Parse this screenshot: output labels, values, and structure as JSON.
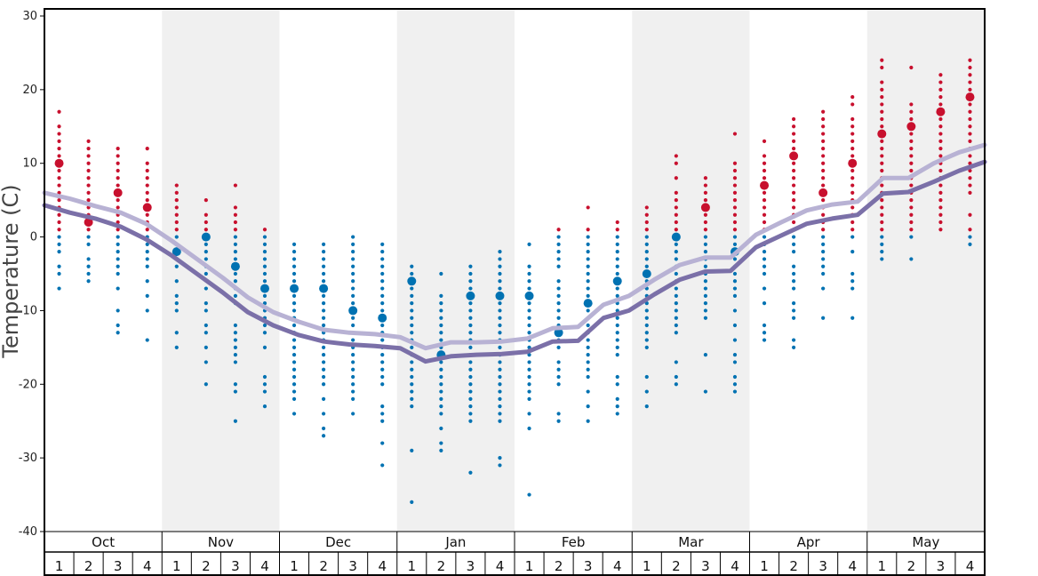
{
  "chart_data": {
    "type": "scatter",
    "ylabel": "Temperature (C)",
    "ylim": [
      -40,
      30
    ],
    "y_ticks": [
      "30",
      "20",
      "10",
      "0",
      "-10",
      "-20",
      "-30",
      "-40"
    ],
    "y_tick_values": [
      30,
      20,
      10,
      0,
      -10,
      -20,
      -30,
      -40
    ],
    "months": [
      "Oct",
      "Nov",
      "Dec",
      "Jan",
      "Feb",
      "Mar",
      "Apr",
      "May"
    ],
    "weeks": [
      "1",
      "2",
      "3",
      "4"
    ],
    "shaded_months": [
      1,
      3,
      5,
      7
    ],
    "colors": {
      "above_zero": "#c8102e",
      "below_zero": "#0072b2",
      "line_dark": "#7b70a8",
      "line_light": "#b8b2d4",
      "shade": "#f0f0f0"
    },
    "series": [
      {
        "name": "",
        "style": "dark",
        "values": [
          4.3,
          3.3,
          2.5,
          1.4,
          -0.3,
          -2.5,
          -5.0,
          -7.5,
          -10.2,
          -12.0,
          -13.3,
          -14.2,
          -14.6,
          -14.8,
          -15.1,
          -16.9,
          -16.2,
          -16.0,
          -15.9,
          -15.6,
          -14.2,
          -14.1,
          -11.0,
          -10.0,
          -7.8,
          -5.8,
          -4.7,
          -4.6,
          -1.4,
          0.2,
          1.8,
          2.5,
          3.0,
          5.9,
          6.1,
          7.5,
          9.0,
          10.2
        ]
      },
      {
        "name": "",
        "style": "light",
        "values": [
          6.0,
          5.2,
          4.2,
          3.3,
          1.8,
          -0.5,
          -3.0,
          -5.5,
          -8.2,
          -10.2,
          -11.5,
          -12.6,
          -13.0,
          -13.2,
          -13.6,
          -15.1,
          -14.3,
          -14.3,
          -14.2,
          -13.8,
          -12.4,
          -12.2,
          -9.2,
          -8.0,
          -5.8,
          -3.8,
          -2.8,
          -2.8,
          0.3,
          2.0,
          3.6,
          4.4,
          4.8,
          8.0,
          8.0,
          10.0,
          11.5,
          12.5
        ]
      }
    ],
    "scatter_columns": [
      {
        "values": [
          17,
          15,
          14,
          13,
          12,
          11,
          10,
          10,
          10,
          9,
          8,
          7,
          6,
          5,
          4,
          3,
          2,
          1,
          0,
          -1,
          -2,
          -4,
          -5,
          -7
        ],
        "big": [
          10
        ]
      },
      {
        "values": [
          13,
          12,
          11,
          10,
          9,
          8,
          7,
          6,
          5,
          4,
          3,
          2,
          1,
          0,
          -1,
          -3,
          -4,
          -5,
          -6
        ],
        "big": [
          2
        ]
      },
      {
        "values": [
          12,
          11,
          10,
          9,
          8,
          7,
          6,
          5,
          4,
          3,
          2,
          1,
          0,
          -1,
          -2,
          -3,
          -4,
          -5,
          -7,
          -10,
          -12,
          -13
        ],
        "big": [
          6
        ]
      },
      {
        "values": [
          12,
          10,
          9,
          8,
          7,
          6,
          5,
          4,
          3,
          2,
          1,
          0,
          -1,
          -2,
          -3,
          -4,
          -6,
          -8,
          -10,
          -14
        ],
        "big": [
          4
        ]
      },
      {
        "values": [
          7,
          6,
          5,
          4,
          3,
          2,
          1,
          0,
          -1,
          -2,
          -3,
          -4,
          -6,
          -8,
          -9,
          -10,
          -13,
          -15
        ],
        "big": [
          -2
        ]
      },
      {
        "values": [
          5,
          3,
          2,
          1,
          0,
          -1,
          -2,
          -3,
          -4,
          -5,
          -7,
          -9,
          -10,
          -12,
          -13,
          -15,
          -17,
          -20
        ],
        "big": [
          0
        ]
      },
      {
        "values": [
          7,
          4,
          3,
          2,
          1,
          0,
          -1,
          -2,
          -3,
          -4,
          -5,
          -6,
          -7,
          -8,
          -9,
          -12,
          -13,
          -14,
          -15,
          -16,
          -17,
          -20,
          -21,
          -25
        ],
        "big": [
          -4
        ]
      },
      {
        "values": [
          1,
          0,
          -1,
          -2,
          -3,
          -4,
          -5,
          -6,
          -7,
          -8,
          -9,
          -10,
          -11,
          -12,
          -13,
          -15,
          -19,
          -20,
          -21,
          -23
        ],
        "big": [
          -7
        ]
      },
      {
        "values": [
          -1,
          -2,
          -3,
          -4,
          -5,
          -6,
          -7,
          -8,
          -9,
          -10,
          -11,
          -12,
          -13,
          -14,
          -15,
          -16,
          -17,
          -18,
          -19,
          -20,
          -21,
          -22,
          -24
        ],
        "big": [
          -7
        ]
      },
      {
        "values": [
          -1,
          -2,
          -3,
          -4,
          -5,
          -6,
          -7,
          -8,
          -9,
          -10,
          -11,
          -12,
          -13,
          -14,
          -15,
          -16,
          -17,
          -18,
          -19,
          -20,
          -22,
          -24,
          -26,
          -27
        ],
        "big": [
          -7
        ]
      },
      {
        "values": [
          0,
          -1,
          -2,
          -3,
          -4,
          -5,
          -6,
          -7,
          -8,
          -9,
          -10,
          -11,
          -12,
          -13,
          -14,
          -15,
          -16,
          -17,
          -18,
          -19,
          -20,
          -21,
          -22,
          -24
        ],
        "big": [
          -10
        ]
      },
      {
        "values": [
          -1,
          -2,
          -3,
          -4,
          -5,
          -6,
          -7,
          -8,
          -9,
          -10,
          -11,
          -12,
          -13,
          -14,
          -15,
          -16,
          -17,
          -18,
          -19,
          -20,
          -23,
          -24,
          -25,
          -28,
          -31
        ],
        "big": [
          -11
        ]
      },
      {
        "values": [
          -4,
          -5,
          -6,
          -7,
          -8,
          -9,
          -10,
          -11,
          -12,
          -13,
          -14,
          -15,
          -16,
          -17,
          -18,
          -19,
          -20,
          -21,
          -22,
          -23,
          -29,
          -36
        ],
        "big": [
          -6
        ]
      },
      {
        "values": [
          -5,
          -8,
          -9,
          -10,
          -11,
          -12,
          -13,
          -14,
          -15,
          -16,
          -17,
          -18,
          -19,
          -20,
          -21,
          -22,
          -23,
          -24,
          -26,
          -28,
          -29
        ],
        "big": [
          -16
        ]
      },
      {
        "values": [
          -4,
          -5,
          -6,
          -7,
          -8,
          -9,
          -10,
          -11,
          -12,
          -13,
          -14,
          -15,
          -16,
          -17,
          -18,
          -19,
          -20,
          -21,
          -22,
          -23,
          -24,
          -25,
          -32
        ],
        "big": [
          -8
        ]
      },
      {
        "values": [
          -2,
          -3,
          -4,
          -5,
          -6,
          -7,
          -8,
          -9,
          -10,
          -11,
          -12,
          -13,
          -14,
          -15,
          -16,
          -17,
          -18,
          -19,
          -20,
          -21,
          -22,
          -23,
          -24,
          -25,
          -30,
          -31
        ],
        "big": [
          -8
        ]
      },
      {
        "values": [
          -1,
          -4,
          -5,
          -6,
          -7,
          -8,
          -9,
          -10,
          -11,
          -12,
          -13,
          -14,
          -15,
          -16,
          -17,
          -18,
          -19,
          -20,
          -21,
          -22,
          -24,
          -26,
          -35
        ],
        "big": [
          -8
        ]
      },
      {
        "values": [
          1,
          0,
          -1,
          -2,
          -3,
          -4,
          -6,
          -7,
          -8,
          -9,
          -10,
          -11,
          -12,
          -13,
          -14,
          -15,
          -17,
          -18,
          -19,
          -20,
          -24,
          -25
        ],
        "big": [
          -13
        ]
      },
      {
        "values": [
          4,
          1,
          0,
          -1,
          -2,
          -3,
          -4,
          -5,
          -6,
          -7,
          -8,
          -9,
          -10,
          -11,
          -12,
          -13,
          -14,
          -15,
          -16,
          -17,
          -18,
          -19,
          -21,
          -23,
          -25
        ],
        "big": [
          -9
        ]
      },
      {
        "values": [
          2,
          1,
          0,
          -1,
          -2,
          -3,
          -4,
          -5,
          -6,
          -7,
          -8,
          -9,
          -10,
          -11,
          -12,
          -13,
          -14,
          -15,
          -16,
          -19,
          -20,
          -22,
          -23,
          -24
        ],
        "big": [
          -6
        ]
      },
      {
        "values": [
          4,
          3,
          2,
          1,
          0,
          -1,
          -2,
          -3,
          -4,
          -5,
          -6,
          -7,
          -8,
          -9,
          -10,
          -11,
          -12,
          -13,
          -14,
          -15,
          -19,
          -21,
          -23
        ],
        "big": [
          -5
        ]
      },
      {
        "values": [
          11,
          10,
          8,
          6,
          5,
          4,
          3,
          2,
          1,
          0,
          -1,
          -2,
          -3,
          -4,
          -5,
          -6,
          -7,
          -8,
          -9,
          -10,
          -11,
          -12,
          -13,
          -17,
          -19,
          -20
        ],
        "big": [
          0
        ]
      },
      {
        "values": [
          8,
          7,
          6,
          5,
          4,
          3,
          2,
          1,
          0,
          -1,
          -2,
          -3,
          -4,
          -5,
          -6,
          -7,
          -8,
          -9,
          -10,
          -11,
          -16,
          -21
        ],
        "big": [
          4
        ]
      },
      {
        "values": [
          14,
          10,
          9,
          8,
          7,
          6,
          5,
          4,
          3,
          2,
          1,
          0,
          -1,
          -2,
          -3,
          -4,
          -5,
          -6,
          -7,
          -8,
          -10,
          -12,
          -14,
          -16,
          -17,
          -19,
          -20,
          -21
        ],
        "big": [
          -2
        ]
      },
      {
        "values": [
          13,
          11,
          10,
          9,
          8,
          7,
          6,
          5,
          4,
          3,
          2,
          1,
          0,
          -1,
          -2,
          -3,
          -4,
          -5,
          -7,
          -9,
          -12,
          -13,
          -14
        ],
        "big": [
          7
        ]
      },
      {
        "values": [
          16,
          15,
          14,
          13,
          12,
          11,
          10,
          9,
          8,
          7,
          6,
          5,
          4,
          3,
          2,
          1,
          0,
          -1,
          -2,
          -4,
          -5,
          -6,
          -7,
          -9,
          -10,
          -11,
          -14,
          -15
        ],
        "big": [
          11
        ]
      },
      {
        "values": [
          17,
          16,
          15,
          14,
          13,
          12,
          11,
          10,
          9,
          8,
          7,
          6,
          5,
          4,
          3,
          2,
          1,
          0,
          -1,
          -2,
          -3,
          -4,
          -5,
          -7,
          -11
        ],
        "big": [
          6
        ]
      },
      {
        "values": [
          19,
          18,
          16,
          15,
          14,
          13,
          12,
          11,
          10,
          9,
          8,
          7,
          6,
          5,
          4,
          3,
          2,
          1,
          0,
          -2,
          -5,
          -6,
          -7,
          -11
        ],
        "big": [
          10
        ]
      },
      {
        "values": [
          24,
          23,
          21,
          20,
          19,
          18,
          17,
          16,
          15,
          14,
          13,
          12,
          11,
          10,
          9,
          8,
          7,
          6,
          5,
          4,
          3,
          2,
          1,
          0,
          -1,
          -2,
          -3
        ],
        "big": [
          14
        ]
      },
      {
        "values": [
          23,
          18,
          17,
          16,
          15,
          14,
          13,
          12,
          11,
          10,
          9,
          8,
          7,
          6,
          5,
          4,
          3,
          2,
          1,
          0,
          -3
        ],
        "big": [
          15
        ]
      },
      {
        "values": [
          22,
          21,
          20,
          19,
          18,
          17,
          16,
          15,
          14,
          13,
          12,
          11,
          10,
          9,
          8,
          7,
          6,
          5,
          4,
          3,
          2,
          1
        ],
        "big": [
          17
        ]
      },
      {
        "values": [
          24,
          23,
          22,
          21,
          20,
          19,
          18,
          17,
          16,
          15,
          14,
          13,
          12,
          11,
          10,
          9,
          8,
          7,
          6,
          3,
          1,
          0,
          -1
        ],
        "big": [
          19
        ]
      }
    ]
  }
}
